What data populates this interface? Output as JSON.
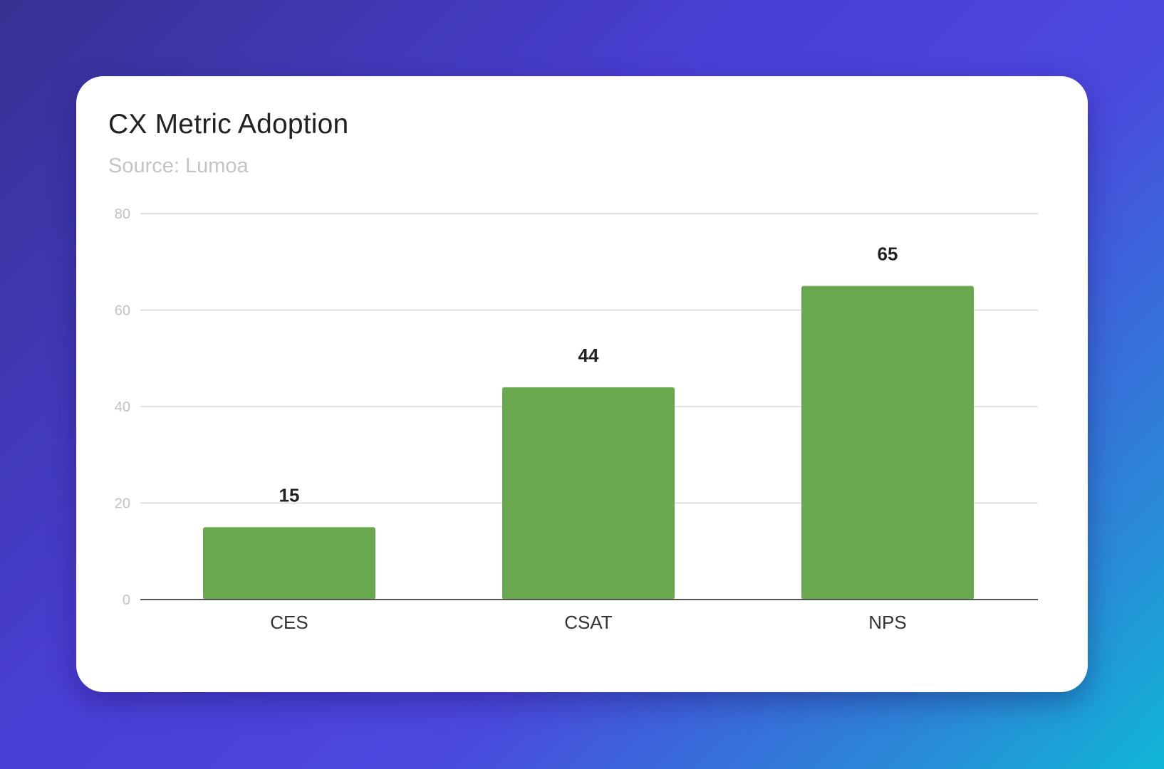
{
  "colors": {
    "bar": "#6aa84f",
    "card_background": "#ffffff"
  },
  "chart_data": {
    "type": "bar",
    "title": "CX Metric Adoption",
    "subtitle": "Source: Lumoa",
    "xlabel": "",
    "ylabel": "",
    "categories": [
      "CES",
      "CSAT",
      "NPS"
    ],
    "values": [
      15,
      44,
      65
    ],
    "data_labels": [
      "15",
      "44",
      "65"
    ],
    "y_ticks": [
      0,
      20,
      40,
      60,
      80
    ],
    "ylim": [
      0,
      80
    ],
    "grid": true,
    "legend": "none"
  }
}
